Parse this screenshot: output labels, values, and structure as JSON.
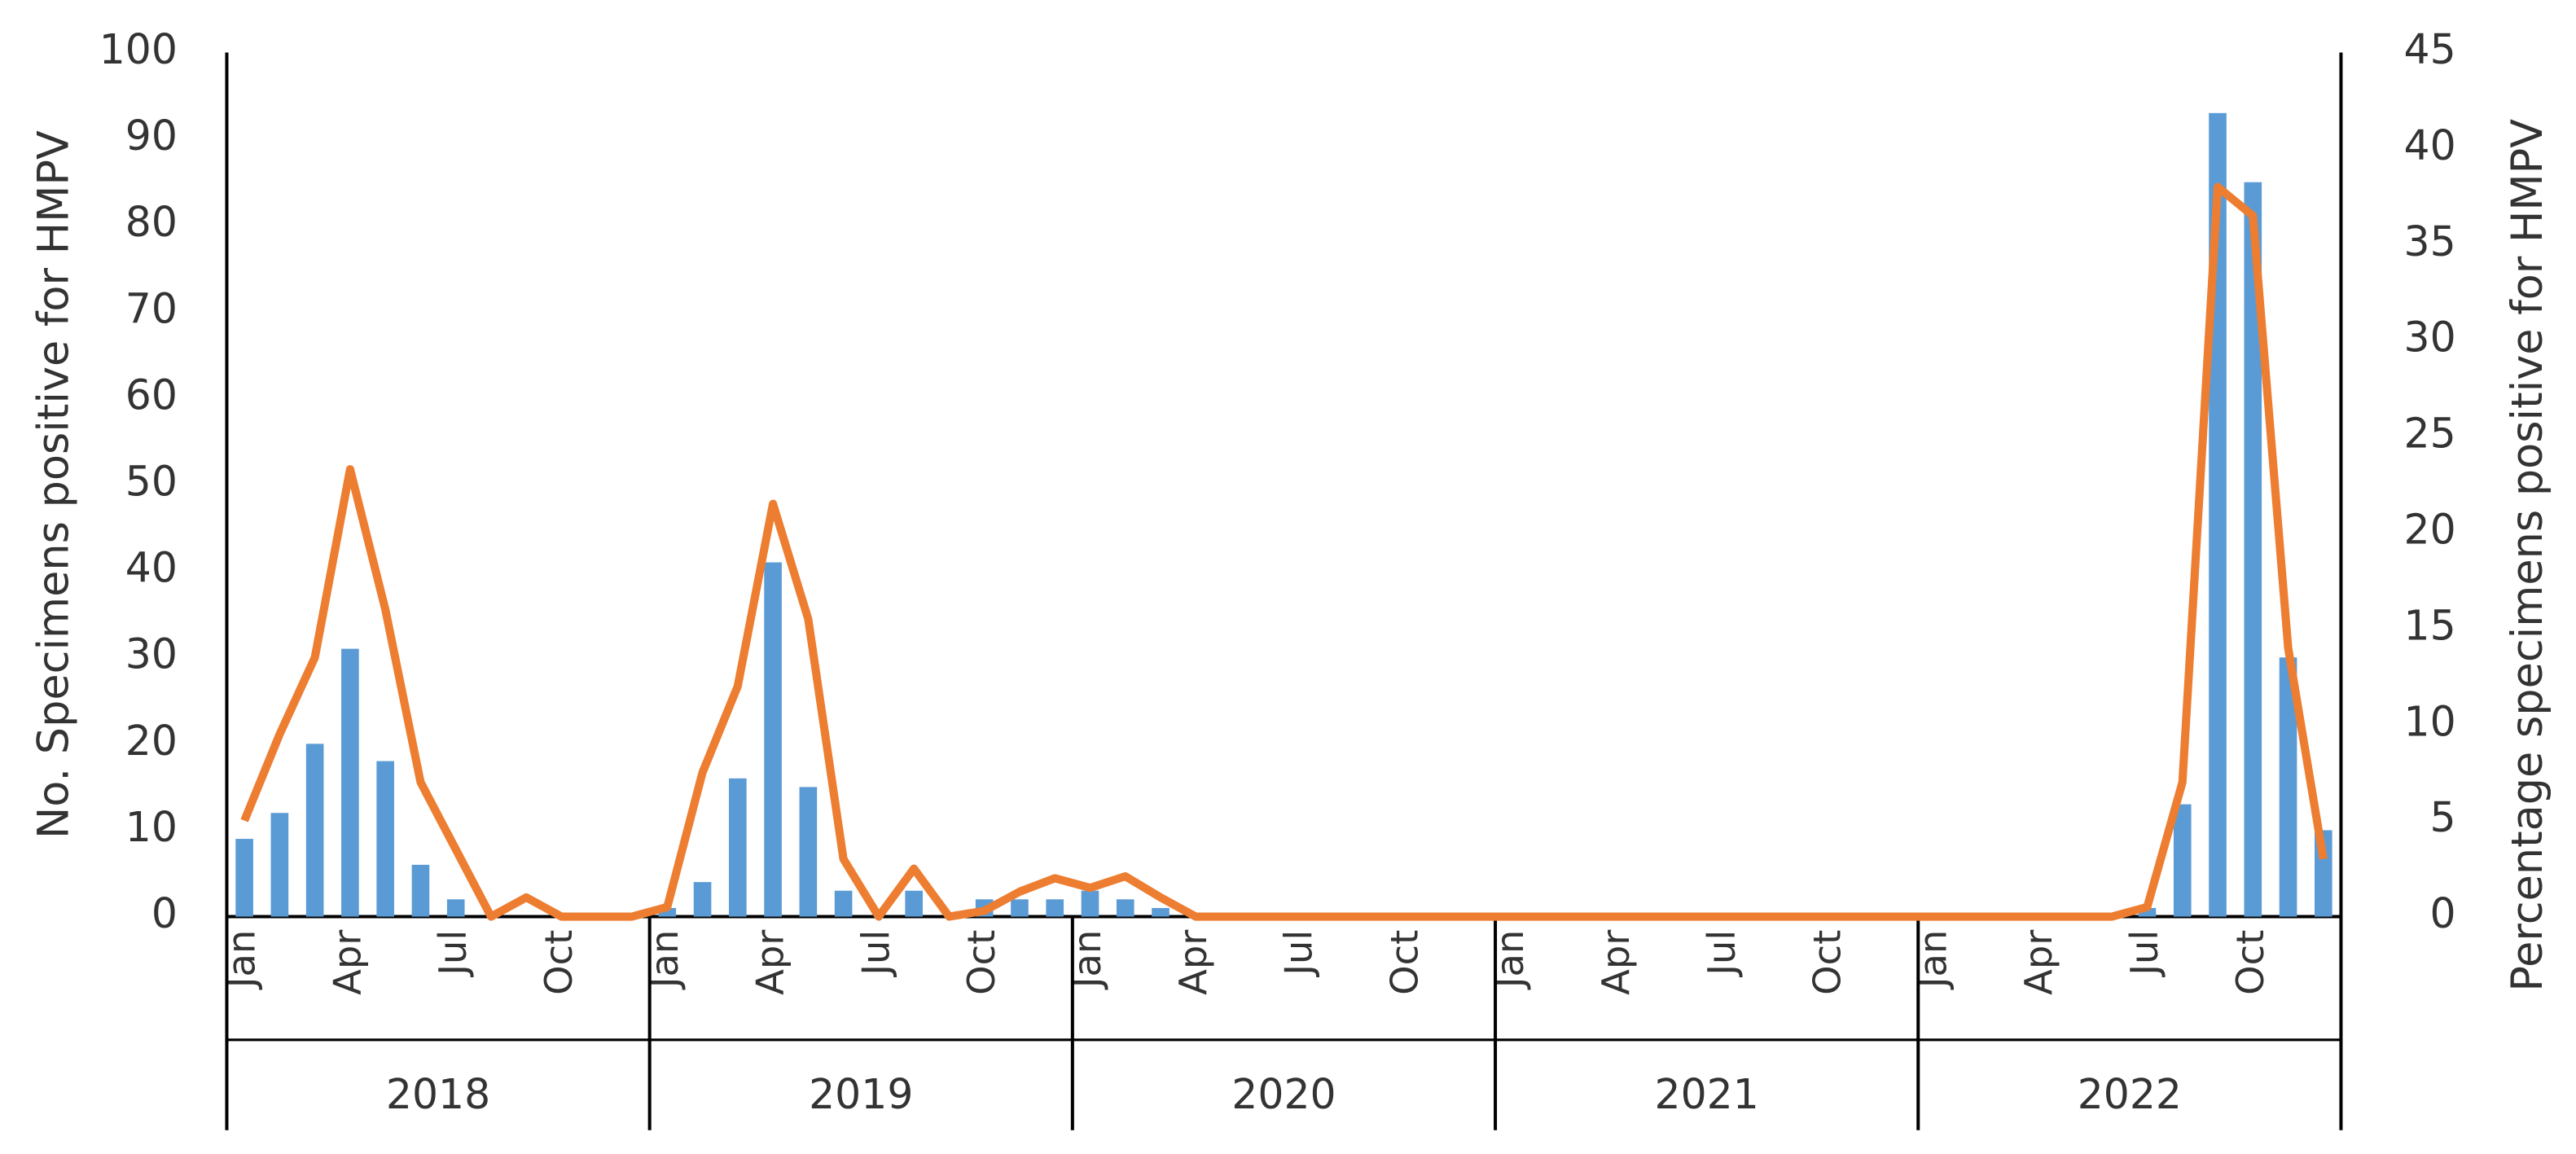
{
  "chart_data": {
    "type": "bar",
    "y_label": "No. Specimens positive for HMPV",
    "y2_label": "Percentage specimens positive for HMPV",
    "categories": [
      "Jan",
      null,
      null,
      "Apr",
      null,
      null,
      "Jul",
      null,
      null,
      "Oct",
      null,
      null,
      "Jan",
      null,
      null,
      "Apr",
      null,
      null,
      "Jul",
      null,
      null,
      "Oct",
      null,
      null,
      "Jan",
      null,
      null,
      "Apr",
      null,
      null,
      "Jul",
      null,
      null,
      "Oct",
      null,
      null,
      "Jan",
      null,
      null,
      "Apr",
      null,
      null,
      "Jul",
      null,
      null,
      "Oct",
      null,
      null,
      "Jan",
      null,
      null,
      "Apr",
      null,
      null,
      "Jul",
      null,
      null,
      "Oct",
      null,
      null
    ],
    "years": [
      "2018",
      "2019",
      "2020",
      "2021",
      "2022"
    ],
    "series": [
      {
        "type": "bar",
        "color": "#5b9bd5",
        "axis": "y",
        "values": [
          9,
          12,
          20,
          31,
          18,
          6,
          2,
          0,
          0,
          0,
          0,
          0,
          1,
          4,
          16,
          41,
          15,
          3,
          0,
          3,
          0,
          2,
          2,
          2,
          3,
          2,
          1,
          0,
          0,
          0,
          0,
          0,
          0,
          0,
          0,
          0,
          0,
          0,
          0,
          0,
          0,
          0,
          0,
          0,
          0,
          0,
          0,
          0,
          0,
          0,
          0,
          0,
          0,
          0,
          1,
          13,
          93,
          85,
          30,
          10
        ]
      },
      {
        "type": "line",
        "color": "#ed7d31",
        "axis": "y2",
        "values": [
          5,
          9.5,
          13.5,
          23.3,
          16,
          7,
          3.5,
          0,
          1,
          0,
          0,
          0,
          0.5,
          7.5,
          12,
          21.5,
          15.5,
          3,
          0,
          2.5,
          0,
          0.3,
          1.3,
          2,
          1.5,
          2.1,
          1,
          0,
          0,
          0,
          0,
          0,
          0,
          0,
          0,
          0,
          0,
          0,
          0,
          0,
          0,
          0,
          0,
          0,
          0,
          0,
          0,
          0,
          0,
          0,
          0,
          0,
          0,
          0,
          0.5,
          7,
          38,
          36.5,
          14,
          3
        ]
      }
    ],
    "ylim": [
      0,
      100
    ],
    "yticks": [
      0,
      10,
      20,
      30,
      40,
      50,
      60,
      70,
      80,
      90,
      100
    ],
    "y2lim": [
      0,
      45
    ],
    "y2ticks": [
      0,
      5,
      10,
      15,
      20,
      25,
      30,
      35,
      40,
      45
    ],
    "grid": false
  }
}
